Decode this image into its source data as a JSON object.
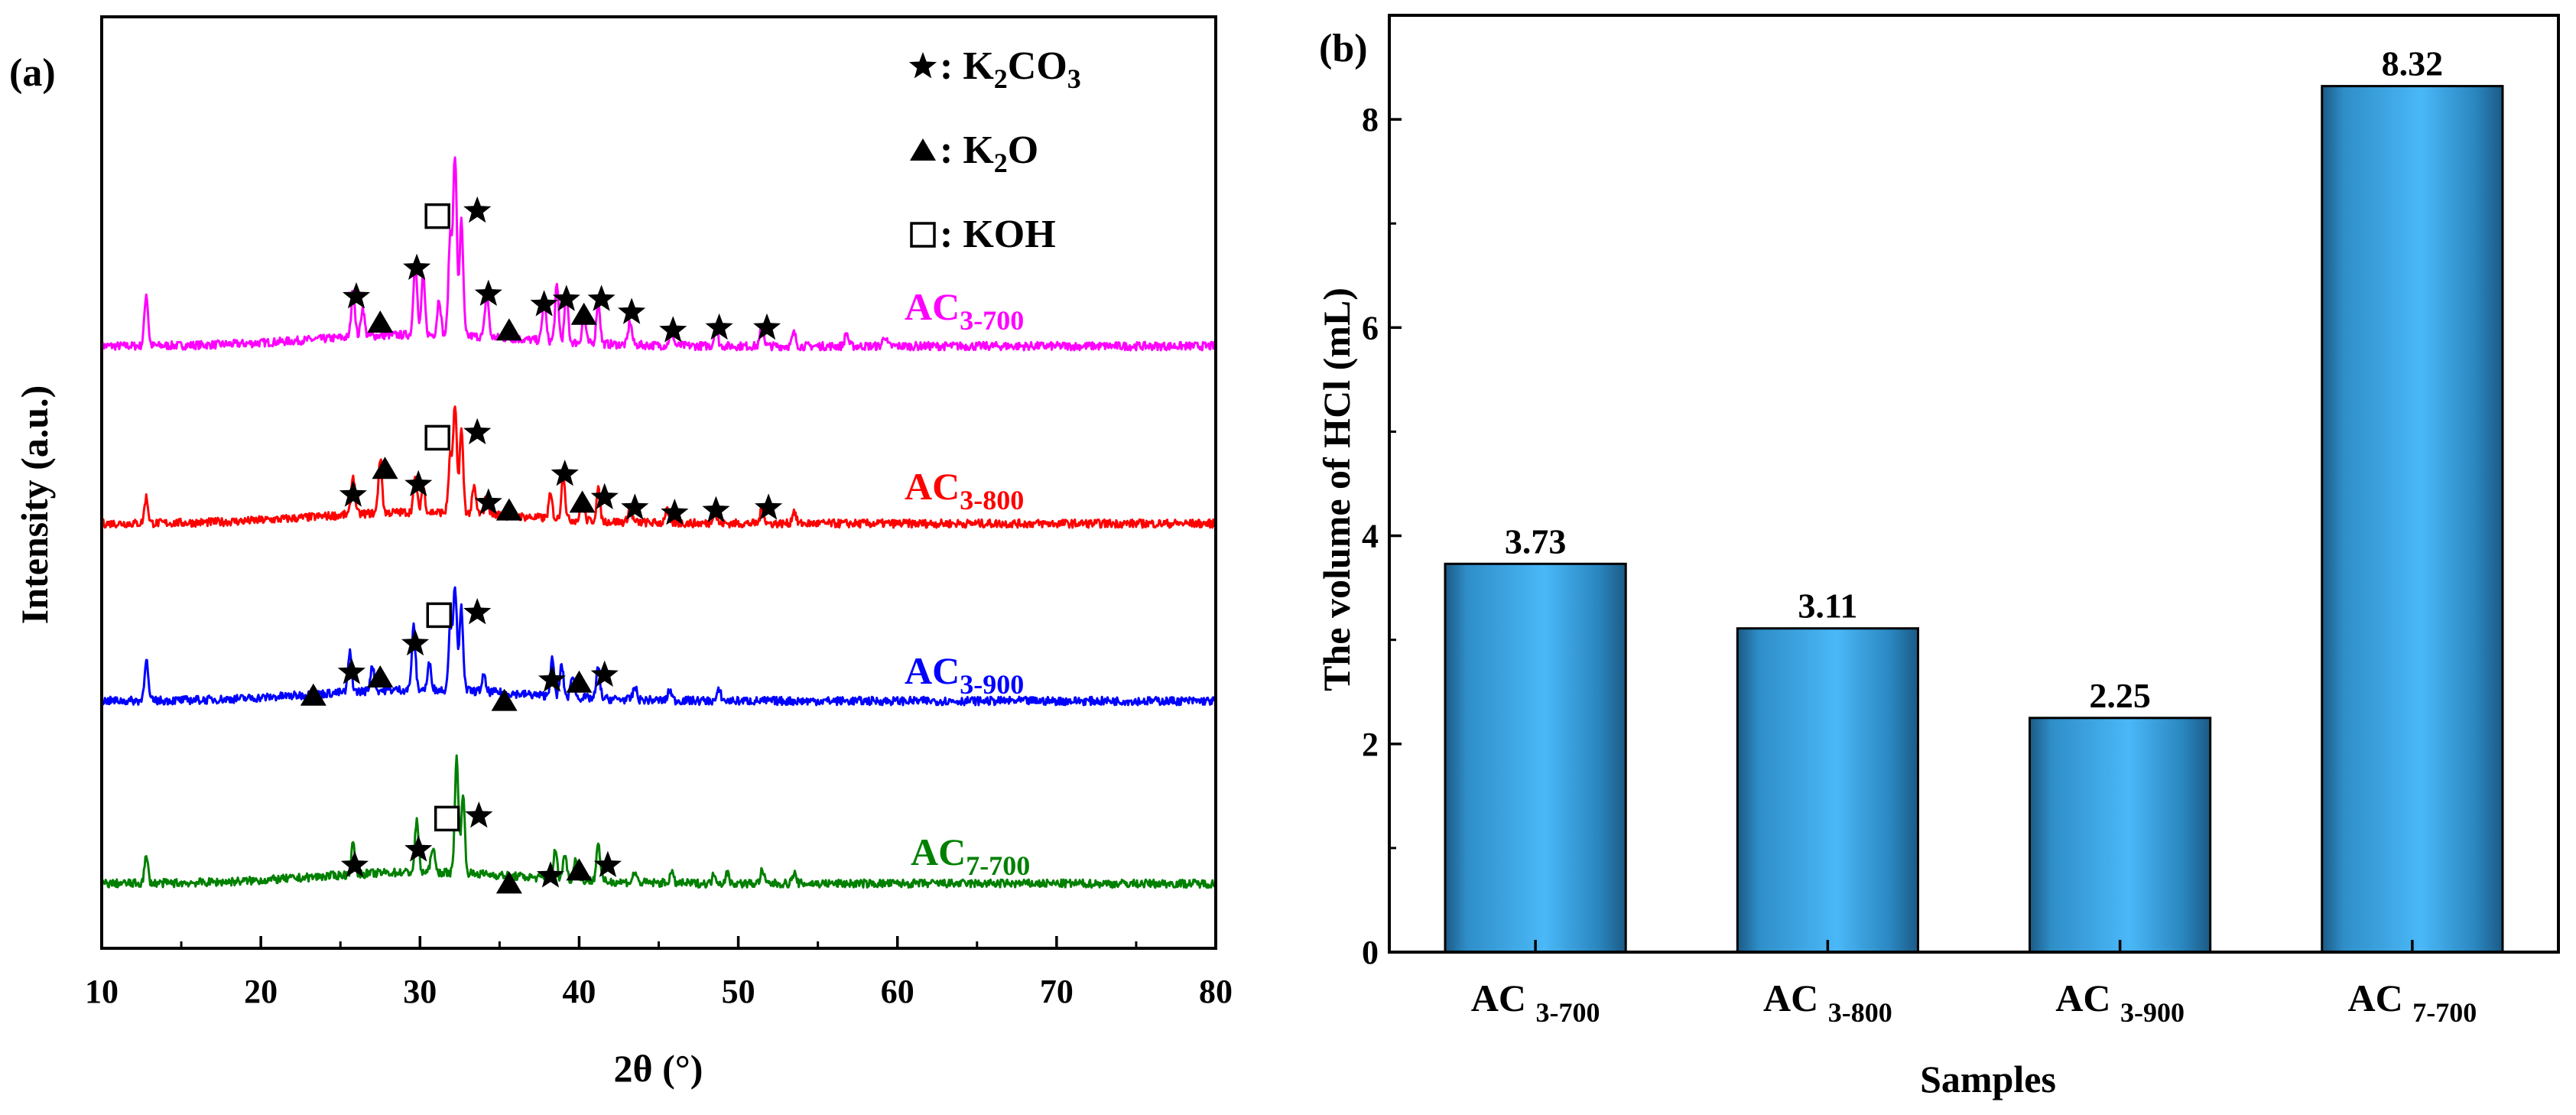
{
  "colors": {
    "AC3-700": "#ff00ff",
    "AC3-800": "#ff0000",
    "AC3-900": "#0000ff",
    "AC7-700": "#008000",
    "bar_dark": "#1b5a85",
    "bar_light": "#4ab8f8"
  },
  "chart_data": [
    {
      "panel": "(a)",
      "type": "line",
      "title": "",
      "xlabel": "2θ (°)",
      "ylabel": "Intensity (a.u.)",
      "xlim": [
        10,
        80
      ],
      "xticks": [
        10,
        20,
        30,
        40,
        50,
        60,
        70,
        80
      ],
      "yticks_shown": false,
      "legend": [
        {
          "symbol": "star-icon",
          "glyph": "★",
          "text": "K2CO3",
          "base": "K",
          "sub1": "2",
          "mid": "CO",
          "sub2": "3"
        },
        {
          "symbol": "triangle-icon",
          "glyph": "▲",
          "text": "K2O",
          "base": "K",
          "sub1": "2",
          "mid": "O",
          "sub2": ""
        },
        {
          "symbol": "square-icon",
          "glyph": "□",
          "text": "KOH",
          "base": "KOH",
          "sub1": "",
          "mid": "",
          "sub2": ""
        }
      ],
      "series": [
        {
          "name": "AC3-700",
          "main": "AC",
          "sub": "3-700",
          "offset": 3,
          "baseline": 0.55,
          "peaks": [
            [
              12.8,
              1.0
            ],
            [
              25.8,
              0.9
            ],
            [
              26.4,
              0.55
            ],
            [
              29.7,
              1.45
            ],
            [
              30.2,
              1.1
            ],
            [
              31.2,
              0.7
            ],
            [
              31.9,
              1.9
            ],
            [
              32.2,
              3.4
            ],
            [
              32.6,
              2.2
            ],
            [
              34.2,
              0.85
            ],
            [
              37.8,
              0.8
            ],
            [
              38.6,
              1.05
            ],
            [
              39.2,
              0.9
            ],
            [
              40.3,
              0.55
            ],
            [
              41.2,
              0.85
            ],
            [
              43.2,
              0.45
            ],
            [
              45.8,
              0.35
            ],
            [
              48.6,
              0.35
            ],
            [
              51.5,
              0.4
            ],
            [
              53.5,
              0.25
            ],
            [
              56.8,
              0.25
            ],
            [
              59.2,
              0.2
            ]
          ],
          "markers": [
            {
              "type": "star",
              "x": 26.0,
              "y": 1.5
            },
            {
              "type": "triangle",
              "x": 27.5,
              "y": 1.0
            },
            {
              "type": "star",
              "x": 29.8,
              "y": 2.05
            },
            {
              "type": "square",
              "x": 31.1,
              "y": 3.05
            },
            {
              "type": "star",
              "x": 33.6,
              "y": 3.15
            },
            {
              "type": "star",
              "x": 34.3,
              "y": 1.55
            },
            {
              "type": "triangle",
              "x": 35.6,
              "y": 0.85
            },
            {
              "type": "star",
              "x": 37.8,
              "y": 1.35
            },
            {
              "type": "star",
              "x": 39.2,
              "y": 1.45
            },
            {
              "type": "triangle",
              "x": 40.3,
              "y": 1.15
            },
            {
              "type": "star",
              "x": 41.4,
              "y": 1.45
            },
            {
              "type": "star",
              "x": 43.3,
              "y": 1.2
            },
            {
              "type": "star",
              "x": 45.9,
              "y": 0.85
            },
            {
              "type": "star",
              "x": 48.8,
              "y": 0.9
            },
            {
              "type": "star",
              "x": 51.8,
              "y": 0.9
            }
          ]
        },
        {
          "name": "AC3-800",
          "main": "AC",
          "sub": "3-800",
          "offset": 2,
          "baseline": 0.55,
          "peaks": [
            [
              12.8,
              0.5
            ],
            [
              25.8,
              0.75
            ],
            [
              27.5,
              1.05
            ],
            [
              29.7,
              0.65
            ],
            [
              30.2,
              0.5
            ],
            [
              31.9,
              1.05
            ],
            [
              32.2,
              2.0
            ],
            [
              32.6,
              1.6
            ],
            [
              33.4,
              0.5
            ],
            [
              34.2,
              0.4
            ],
            [
              38.2,
              0.45
            ],
            [
              39.0,
              0.9
            ],
            [
              40.2,
              0.45
            ],
            [
              41.2,
              0.6
            ],
            [
              43.2,
              0.3
            ],
            [
              45.5,
              0.25
            ],
            [
              48.5,
              0.25
            ],
            [
              51.5,
              0.3
            ],
            [
              53.5,
              0.25
            ]
          ],
          "markers": [
            {
              "type": "star",
              "x": 25.8,
              "y": 1.1
            },
            {
              "type": "triangle",
              "x": 27.8,
              "y": 1.6
            },
            {
              "type": "star",
              "x": 29.9,
              "y": 1.3
            },
            {
              "type": "square",
              "x": 31.1,
              "y": 2.2
            },
            {
              "type": "star",
              "x": 33.6,
              "y": 2.3
            },
            {
              "type": "star",
              "x": 34.3,
              "y": 0.95
            },
            {
              "type": "triangle",
              "x": 35.6,
              "y": 0.8
            },
            {
              "type": "star",
              "x": 39.1,
              "y": 1.5
            },
            {
              "type": "triangle",
              "x": 40.2,
              "y": 0.95
            },
            {
              "type": "star",
              "x": 41.6,
              "y": 1.05
            },
            {
              "type": "star",
              "x": 43.5,
              "y": 0.85
            },
            {
              "type": "star",
              "x": 46.0,
              "y": 0.75
            },
            {
              "type": "star",
              "x": 48.6,
              "y": 0.8
            },
            {
              "type": "star",
              "x": 51.9,
              "y": 0.85
            }
          ]
        },
        {
          "name": "AC3-900",
          "main": "AC",
          "sub": "3-900",
          "offset": 1,
          "baseline": 0.55,
          "peaks": [
            [
              12.8,
              0.8
            ],
            [
              25.6,
              0.75
            ],
            [
              27.0,
              0.5
            ],
            [
              29.6,
              1.2
            ],
            [
              30.6,
              0.5
            ],
            [
              31.9,
              1.2
            ],
            [
              32.2,
              2.0
            ],
            [
              32.6,
              1.6
            ],
            [
              34.0,
              0.3
            ],
            [
              38.3,
              0.7
            ],
            [
              38.9,
              0.6
            ],
            [
              39.6,
              0.45
            ],
            [
              41.2,
              0.6
            ],
            [
              43.5,
              0.25
            ],
            [
              45.7,
              0.2
            ],
            [
              48.8,
              0.2
            ]
          ],
          "markers": [
            {
              "type": "triangle",
              "x": 23.3,
              "y": 0.65
            },
            {
              "type": "star",
              "x": 25.7,
              "y": 1.1
            },
            {
              "type": "triangle",
              "x": 27.5,
              "y": 1.0
            },
            {
              "type": "star",
              "x": 29.7,
              "y": 1.65
            },
            {
              "type": "square",
              "x": 31.2,
              "y": 2.2
            },
            {
              "type": "star",
              "x": 33.6,
              "y": 2.25
            },
            {
              "type": "triangle",
              "x": 35.3,
              "y": 0.55
            },
            {
              "type": "star",
              "x": 38.3,
              "y": 0.95
            },
            {
              "type": "triangle",
              "x": 40.0,
              "y": 0.9
            },
            {
              "type": "star",
              "x": 41.6,
              "y": 1.05
            }
          ]
        },
        {
          "name": "AC7-700",
          "main": "AC",
          "sub": "7-700",
          "offset": 0,
          "baseline": 0.45,
          "peaks": [
            [
              12.8,
              0.5
            ],
            [
              25.8,
              0.6
            ],
            [
              29.8,
              1.0
            ],
            [
              30.8,
              0.5
            ],
            [
              32.3,
              2.2
            ],
            [
              32.7,
              1.5
            ],
            [
              38.5,
              0.55
            ],
            [
              39.1,
              0.5
            ],
            [
              39.8,
              0.45
            ],
            [
              41.2,
              0.75
            ],
            [
              43.5,
              0.2
            ],
            [
              45.8,
              0.2
            ],
            [
              48.5,
              0.2
            ],
            [
              49.3,
              0.2
            ],
            [
              51.5,
              0.25
            ],
            [
              53.5,
              0.2
            ]
          ],
          "markers": [
            {
              "type": "star",
              "x": 25.9,
              "y": 0.8
            },
            {
              "type": "star",
              "x": 29.9,
              "y": 1.1
            },
            {
              "type": "square",
              "x": 31.7,
              "y": 1.7
            },
            {
              "type": "star",
              "x": 33.7,
              "y": 1.75
            },
            {
              "type": "triangle",
              "x": 35.6,
              "y": 0.45
            },
            {
              "type": "star",
              "x": 38.2,
              "y": 0.6
            },
            {
              "type": "triangle",
              "x": 40.0,
              "y": 0.7
            },
            {
              "type": "star",
              "x": 41.8,
              "y": 0.8
            }
          ]
        }
      ]
    },
    {
      "panel": "(b)",
      "type": "bar",
      "title": "",
      "xlabel": "Samples",
      "ylabel": "The volume of HCl (mL)",
      "ylim": [
        0,
        9
      ],
      "yticks": [
        0,
        2,
        4,
        6,
        8
      ],
      "categories": [
        "AC 3-700",
        "AC 3-800",
        "AC 3-900",
        "AC 7-700"
      ],
      "category_parts": [
        {
          "main": "AC ",
          "sub": "3-700"
        },
        {
          "main": "AC ",
          "sub": "3-800"
        },
        {
          "main": "AC ",
          "sub": "3-900"
        },
        {
          "main": "AC ",
          "sub": "7-700"
        }
      ],
      "values": [
        3.73,
        3.11,
        2.25,
        8.32
      ],
      "value_labels": [
        "3.73",
        "3.11",
        "2.25",
        "8.32"
      ]
    }
  ]
}
